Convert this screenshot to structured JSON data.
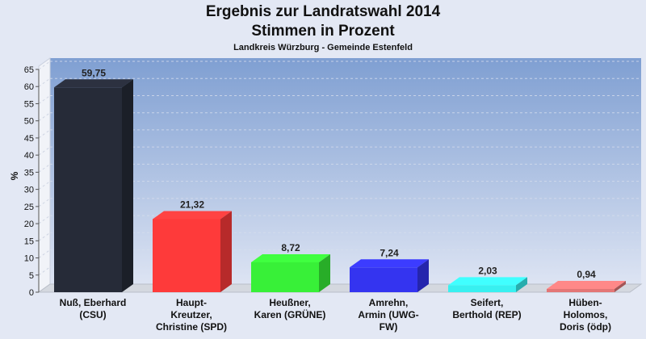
{
  "chart_data": {
    "type": "bar",
    "title": "Ergebnis zur Landratswahl 2014",
    "subtitle_line": "Stimmen in Prozent",
    "caption": "Landkreis Würzburg - Gemeinde Estenfeld",
    "ylabel": "%",
    "ylim": [
      0,
      65
    ],
    "yticks": [
      "0",
      "5",
      "10",
      "15",
      "20",
      "25",
      "30",
      "35",
      "40",
      "45",
      "50",
      "55",
      "60",
      "65"
    ],
    "grid": true,
    "categories": [
      [
        "Nuß, Eberhard",
        "(CSU)"
      ],
      [
        "Haupt-",
        "Kreutzer,",
        "Christine (SPD)"
      ],
      [
        "Heußner,",
        "Karen (GRÜNE)"
      ],
      [
        "Amrehn,",
        "Armin (UWG-",
        "FW)"
      ],
      [
        "Seifert,",
        "Berthold (REP)"
      ],
      [
        "Hüben-",
        "Holomos,",
        "Doris (ödp)"
      ]
    ],
    "values": [
      59.75,
      21.32,
      8.72,
      7.24,
      2.03,
      0.94
    ],
    "value_labels": [
      "59,75",
      "21,32",
      "8,72",
      "7,24",
      "2,03",
      "0,94"
    ],
    "colors": [
      "#262b38",
      "#fe3a3a",
      "#38f038",
      "#3434f0",
      "#38f0f0",
      "#e37676"
    ]
  }
}
